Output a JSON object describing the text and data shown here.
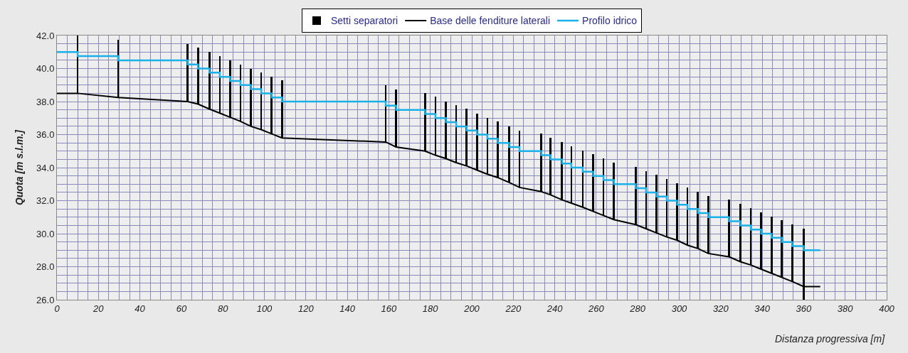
{
  "chart_data": {
    "type": "line",
    "xlabel": "Distanza progressiva [m]",
    "ylabel": "Quota [m s.l.m.]",
    "xlim": [
      0,
      400
    ],
    "xticks": [
      0,
      20,
      40,
      60,
      80,
      100,
      120,
      140,
      160,
      180,
      200,
      220,
      240,
      260,
      280,
      300,
      320,
      340,
      360,
      380,
      400
    ],
    "ylim": [
      26,
      42
    ],
    "yticks": [
      {
        "value": 26,
        "label": "26.0"
      },
      {
        "value": 28,
        "label": "28.0"
      },
      {
        "value": 30,
        "label": "30.0"
      },
      {
        "value": 32,
        "label": "32.0"
      },
      {
        "value": 34,
        "label": "34.0"
      },
      {
        "value": 36,
        "label": "36.0"
      },
      {
        "value": 38,
        "label": "38.0"
      },
      {
        "value": 40,
        "label": "40.0"
      },
      {
        "value": 42,
        "label": "42.0"
      }
    ],
    "grid": true,
    "legend": "top",
    "marker": "none",
    "series": [
      {
        "name": "Setti separatori",
        "type": "bar",
        "color": "#000000",
        "x": [
          10,
          29.5,
          63,
          68,
          73.5,
          78.5,
          83.5,
          88.5,
          93.5,
          98.5,
          103.5,
          108.5,
          158.5,
          163.5,
          177.5,
          182.5,
          187.5,
          192.5,
          197.5,
          202.5,
          207.5,
          212.5,
          218,
          223,
          233.5,
          238,
          243.5,
          248,
          253.5,
          258.5,
          263.5,
          268.5,
          279,
          284,
          289,
          294,
          299,
          304,
          309,
          314,
          324,
          329.5,
          334.5,
          339.5,
          344.5,
          349.5,
          354.5,
          360
        ],
        "base": [
          38.5,
          38.25,
          38.0,
          37.85,
          37.55,
          37.3,
          37.05,
          36.8,
          36.5,
          36.3,
          36.05,
          35.8,
          35.55,
          35.25,
          35.0,
          34.75,
          34.55,
          34.3,
          34.1,
          33.85,
          33.6,
          33.4,
          33.1,
          32.8,
          32.55,
          32.35,
          32.05,
          31.85,
          31.6,
          31.35,
          31.1,
          30.85,
          30.55,
          30.3,
          30.05,
          29.8,
          29.6,
          29.3,
          29.1,
          28.8,
          28.6,
          28.3,
          28.1,
          27.85,
          27.6,
          27.35,
          27.1,
          26.0
        ],
        "values": [
          3.5,
          3.5,
          3.5,
          3.4,
          3.45,
          3.45,
          3.45,
          3.45,
          3.5,
          3.45,
          3.45,
          3.5,
          3.45,
          3.5,
          3.5,
          3.55,
          3.45,
          3.5,
          3.45,
          3.4,
          3.4,
          3.4,
          3.4,
          3.45,
          3.5,
          3.45,
          3.5,
          3.45,
          3.45,
          3.45,
          3.45,
          3.45,
          3.5,
          3.5,
          3.5,
          3.5,
          3.45,
          3.5,
          3.45,
          3.5,
          3.45,
          3.5,
          3.45,
          3.45,
          3.45,
          3.45,
          3.45,
          4.3
        ]
      },
      {
        "name": "Base delle fenditure laterali",
        "color": "#000000",
        "x": [
          0,
          10,
          29.5,
          63,
          68,
          73.5,
          78.5,
          83.5,
          88.5,
          93.5,
          98.5,
          103.5,
          108.5,
          158.5,
          163.5,
          177.5,
          182.5,
          187.5,
          192.5,
          197.5,
          202.5,
          207.5,
          212.5,
          218,
          223,
          233.5,
          238,
          243.5,
          248,
          253.5,
          258.5,
          263.5,
          268.5,
          279,
          284,
          289,
          294,
          299,
          304,
          309,
          314,
          324,
          329.5,
          334.5,
          339.5,
          344.5,
          349.5,
          354.5,
          360,
          368
        ],
        "values": [
          38.5,
          38.5,
          38.25,
          38.0,
          37.85,
          37.55,
          37.3,
          37.05,
          36.8,
          36.5,
          36.3,
          36.05,
          35.8,
          35.55,
          35.25,
          35.0,
          34.75,
          34.55,
          34.3,
          34.1,
          33.85,
          33.6,
          33.4,
          33.1,
          32.8,
          32.55,
          32.35,
          32.05,
          31.85,
          31.6,
          31.35,
          31.1,
          30.85,
          30.55,
          30.3,
          30.05,
          29.8,
          29.6,
          29.3,
          29.1,
          28.8,
          28.6,
          28.3,
          28.1,
          27.85,
          27.6,
          27.35,
          27.1,
          26.8,
          26.8
        ]
      },
      {
        "name": "Profilo idrico",
        "type": "step",
        "color": "#1ab0e8",
        "x": [
          0,
          10,
          29.5,
          63,
          68,
          73.5,
          78.5,
          83.5,
          88.5,
          93.5,
          98.5,
          103.5,
          108.5,
          158.5,
          163.5,
          177.5,
          182.5,
          187.5,
          192.5,
          197.5,
          202.5,
          207.5,
          212.5,
          218,
          223,
          233.5,
          238,
          243.5,
          248,
          253.5,
          258.5,
          263.5,
          268.5,
          279,
          284,
          289,
          294,
          299,
          304,
          309,
          314,
          324,
          329.5,
          334.5,
          339.5,
          344.5,
          349.5,
          354.5,
          360,
          368
        ],
        "values": [
          41.0,
          40.75,
          40.5,
          40.25,
          40.0,
          39.75,
          39.5,
          39.25,
          39.0,
          38.75,
          38.5,
          38.25,
          38.0,
          37.75,
          37.5,
          37.25,
          37.0,
          36.75,
          36.5,
          36.25,
          36.0,
          35.75,
          35.5,
          35.25,
          35.0,
          34.75,
          34.5,
          34.25,
          34.0,
          33.75,
          33.5,
          33.25,
          33.0,
          32.75,
          32.5,
          32.25,
          32.0,
          31.75,
          31.5,
          31.25,
          31.0,
          30.75,
          30.5,
          30.25,
          30.0,
          29.75,
          29.5,
          29.25,
          29.0,
          29.0
        ]
      }
    ]
  }
}
